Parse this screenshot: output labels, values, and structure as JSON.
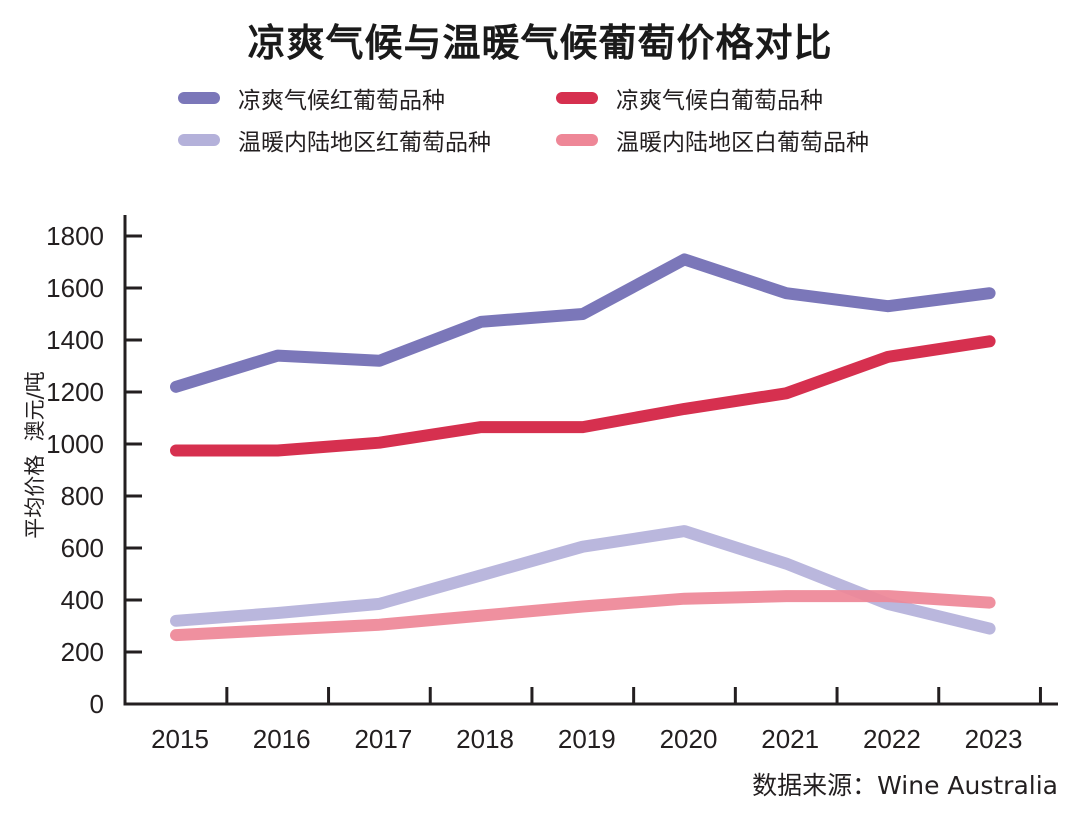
{
  "chart_data": {
    "type": "line",
    "title": "凉爽气候与温暖气候葡萄价格对比",
    "xlabel": "",
    "ylabel": "平均价格  澳元/吨",
    "x": [
      "2015",
      "2016",
      "2017",
      "2018",
      "2019",
      "2020",
      "2021",
      "2022",
      "2023"
    ],
    "ylim": [
      0,
      1800
    ],
    "yticks": [
      0,
      200,
      400,
      600,
      800,
      1000,
      1200,
      1400,
      1600,
      1800
    ],
    "ytick_labels": [
      "0",
      "200",
      "400",
      "600",
      "800",
      "1000",
      "1200",
      "1400",
      "1600",
      "1800"
    ],
    "grid": false,
    "legend_position": "top",
    "series": [
      {
        "name": "凉爽气候红葡萄品种",
        "color": "#7b77b9",
        "values": [
          1220,
          1340,
          1320,
          1470,
          1500,
          1710,
          1580,
          1530,
          1580
        ]
      },
      {
        "name": "凉爽气候白葡萄品种",
        "color": "#d6304f",
        "values": [
          975,
          975,
          1005,
          1065,
          1065,
          1135,
          1195,
          1335,
          1395
        ]
      },
      {
        "name": "温暖内陆地区红葡萄品种",
        "color": "#b4b1da",
        "values": [
          320,
          350,
          385,
          495,
          605,
          665,
          540,
          385,
          290
        ]
      },
      {
        "name": "温暖内陆地区白葡萄品种",
        "color": "#ee8797",
        "values": [
          265,
          285,
          305,
          340,
          375,
          405,
          415,
          415,
          390
        ]
      }
    ],
    "source": "数据来源：Wine Australia"
  }
}
